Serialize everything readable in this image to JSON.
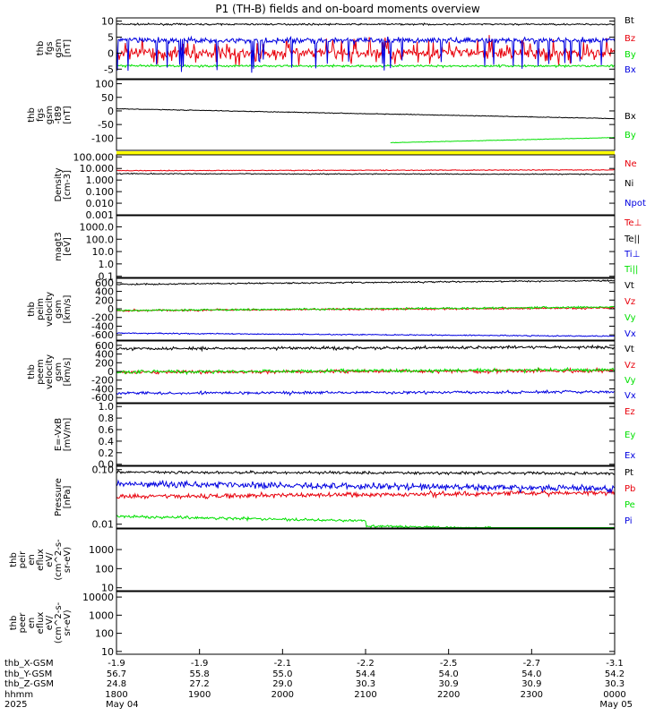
{
  "title": "P1 (TH-B) fields and on-board moments overview",
  "colors": {
    "black": "#000000",
    "red": "#e8000b",
    "green": "#00e000",
    "blue": "#0000e0",
    "yellow": "#ffff00"
  },
  "chart_data": [
    {
      "id": "fgs",
      "type": "line",
      "ylabel": [
        "thb",
        "fgs",
        "gsm",
        "[nT]"
      ],
      "ylim": [
        -8,
        11
      ],
      "yticks": [
        10,
        5,
        0,
        -5
      ],
      "ytick_labels": [
        "10",
        "5",
        "0",
        "-5"
      ],
      "series": [
        {
          "name": "Bt",
          "color": "black",
          "base": 9,
          "noise": 0.8,
          "shift": 0
        },
        {
          "name": "Bz",
          "color": "red",
          "base": 0,
          "noise": 5,
          "shift": 0,
          "bursty": true
        },
        {
          "name": "By",
          "color": "green",
          "base": -4,
          "noise": 1.2,
          "shift": 0
        },
        {
          "name": "Bx",
          "color": "blue",
          "base": 4,
          "noise": 3,
          "shift": 0,
          "dips": true
        }
      ]
    },
    {
      "id": "fgs_t89",
      "type": "line",
      "ylabel": [
        "thb",
        "fgs",
        "gsm",
        "-t89",
        "[nT]"
      ],
      "ylim": [
        -145,
        115
      ],
      "yticks": [
        100,
        50,
        0,
        -50,
        -100
      ],
      "ytick_labels": [
        "100",
        "50",
        "0",
        "-50",
        "-100"
      ],
      "series": [
        {
          "name": "Bx",
          "color": "black",
          "from": 8,
          "to": -28,
          "noise": 1.5
        },
        {
          "name": "By",
          "color": "green",
          "from": -140,
          "to": -98,
          "noise": 1,
          "start_frac": 0.55
        }
      ],
      "bar": {
        "color": "yellow"
      }
    },
    {
      "id": "density",
      "type": "line",
      "log": true,
      "ylabel": [
        "Density",
        "[cm-3]"
      ],
      "ylim": [
        0.001,
        150
      ],
      "yticks": [
        100,
        10,
        1,
        0.1,
        0.01,
        0.001
      ],
      "ytick_labels": [
        "100.000",
        "10.000",
        "1.000",
        "0.100",
        "0.010",
        "0.001"
      ],
      "series": [
        {
          "name": "Ne",
          "color": "red",
          "from": 6.5,
          "to": 7.5,
          "noise": 0.04
        },
        {
          "name": "Ni",
          "color": "black",
          "from": 3.5,
          "to": 3.2,
          "noise": 0.05
        },
        {
          "name": "Npot",
          "color": "blue"
        }
      ]
    },
    {
      "id": "temp",
      "type": "line",
      "log": true,
      "ylabel": [
        "magt3",
        "[eV]"
      ],
      "ylim": [
        0.08,
        8000
      ],
      "yticks": [
        1000,
        100,
        10,
        1,
        0.1
      ],
      "ytick_labels": [
        "1000.0",
        "100.0",
        "10.0",
        "1.0",
        "0.1"
      ],
      "series": [
        {
          "name": "Te⊥",
          "color": "red"
        },
        {
          "name": "Te||",
          "color": "black"
        },
        {
          "name": "Ti⊥",
          "color": "blue"
        },
        {
          "name": "Ti||",
          "color": "green"
        }
      ]
    },
    {
      "id": "peim",
      "type": "line",
      "ylabel": [
        "thb",
        "peim",
        "velocity",
        "gsm",
        "[km/s]"
      ],
      "ylim": [
        -720,
        700
      ],
      "yticks": [
        600,
        400,
        200,
        0,
        -200,
        -400,
        -600
      ],
      "ytick_labels": [
        "600",
        "400",
        "200",
        "0",
        "-200",
        "-400",
        "-600"
      ],
      "series": [
        {
          "name": "Vt",
          "color": "black",
          "from": 560,
          "to": 650,
          "noise": 20
        },
        {
          "name": "Vz",
          "color": "red",
          "from": -40,
          "to": 20,
          "noise": 25
        },
        {
          "name": "Vy",
          "color": "green",
          "from": -40,
          "to": 40,
          "noise": 25
        },
        {
          "name": "Vx",
          "color": "blue",
          "from": -560,
          "to": -630,
          "noise": 15
        }
      ]
    },
    {
      "id": "peem",
      "type": "line",
      "ylabel": [
        "thb",
        "peem",
        "velocity",
        "gsm",
        "[km/s]"
      ],
      "ylim": [
        -720,
        700
      ],
      "yticks": [
        600,
        400,
        200,
        0,
        -200,
        -400,
        -600
      ],
      "ytick_labels": [
        "600",
        "400",
        "200",
        "0",
        "-200",
        "-400",
        "-600"
      ],
      "series": [
        {
          "name": "Vt",
          "color": "black",
          "from": 520,
          "to": 560,
          "noise": 40
        },
        {
          "name": "Vz",
          "color": "red",
          "from": -20,
          "to": 20,
          "noise": 45
        },
        {
          "name": "Vy",
          "color": "green",
          "from": -10,
          "to": 40,
          "noise": 45
        },
        {
          "name": "Vx",
          "color": "blue",
          "from": -500,
          "to": -470,
          "noise": 40
        }
      ]
    },
    {
      "id": "efield",
      "type": "line",
      "ylabel": [
        "E=-VxB",
        "[mV/m]"
      ],
      "ylim": [
        -0.02,
        1.05
      ],
      "yticks": [
        1,
        0.8,
        0.6,
        0.4,
        0.2,
        0
      ],
      "ytick_labels": [
        "1.0",
        "0.8",
        "0.6",
        "0.4",
        "0.2",
        "0.0"
      ],
      "series": [
        {
          "name": "Ez",
          "color": "red"
        },
        {
          "name": "Ey",
          "color": "green"
        },
        {
          "name": "Ex",
          "color": "blue"
        }
      ]
    },
    {
      "id": "pressure",
      "type": "line",
      "log": true,
      "ylabel": [
        "Pressure",
        "[nPa]"
      ],
      "ylim": [
        0.0085,
        0.115
      ],
      "yticks": [
        0.1,
        0.01
      ],
      "ytick_labels": [
        "0.10",
        "0.01"
      ],
      "series": [
        {
          "name": "Pt",
          "color": "black",
          "from": 0.09,
          "to": 0.085,
          "noise": 0.03
        },
        {
          "name": "Pb",
          "color": "red",
          "from": 0.032,
          "to": 0.038,
          "noise": 0.05
        },
        {
          "name": "Pe",
          "color": "green",
          "from": 0.014,
          "to": 0.0095,
          "noise": 0.03,
          "step": 0.5
        },
        {
          "name": "Pi",
          "color": "blue",
          "from": 0.055,
          "to": 0.045,
          "noise": 0.07
        }
      ]
    },
    {
      "id": "peir",
      "type": "line",
      "log": true,
      "ylabel": [
        "thb",
        "peir",
        "en",
        "eflux",
        "eV/",
        "(cm^2-s-",
        "sr-eV)"
      ],
      "ylim": [
        7,
        12000
      ],
      "yticks": [
        1000,
        100,
        10
      ],
      "ytick_labels": [
        "1000",
        "100",
        "10"
      ],
      "series": []
    },
    {
      "id": "peer",
      "type": "line",
      "log": true,
      "ylabel": [
        "thb",
        "peer",
        "en",
        "eflux",
        "eV/",
        "(cm^2-s-",
        "sr-eV)"
      ],
      "ylim": [
        7,
        20000
      ],
      "yticks": [
        10000,
        1000,
        100,
        10
      ],
      "ytick_labels": [
        "10000",
        "1000",
        "100",
        "10"
      ],
      "series": []
    }
  ],
  "xaxis": {
    "row_labels": [
      "thb_X-GSM",
      "thb_Y-GSM",
      "thb_Z-GSM",
      "hhmm",
      "2025"
    ],
    "ticks": [
      {
        "x": "-1.9",
        "y": "56.7",
        "z": "24.8",
        "hhmm": "1800",
        "date": "May 04"
      },
      {
        "x": "-1.9",
        "y": "55.8",
        "z": "27.2",
        "hhmm": "1900",
        "date": ""
      },
      {
        "x": "-2.1",
        "y": "55.0",
        "z": "29.0",
        "hhmm": "2000",
        "date": ""
      },
      {
        "x": "-2.2",
        "y": "54.4",
        "z": "30.3",
        "hhmm": "2100",
        "date": ""
      },
      {
        "x": "-2.5",
        "y": "54.0",
        "z": "30.9",
        "hhmm": "2200",
        "date": ""
      },
      {
        "x": "-2.7",
        "y": "54.0",
        "z": "30.9",
        "hhmm": "2300",
        "date": ""
      },
      {
        "x": "-3.1",
        "y": "54.2",
        "z": "30.3",
        "hhmm": "0000",
        "date": "May 05"
      }
    ]
  }
}
